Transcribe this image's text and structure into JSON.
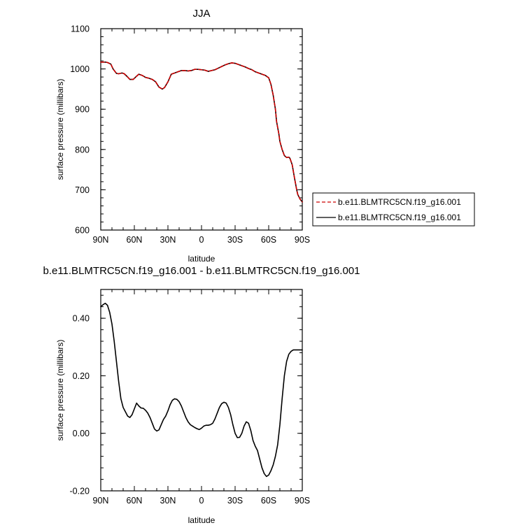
{
  "chart_data": [
    {
      "type": "line",
      "title": "JJA",
      "xlabel": "latitude",
      "ylabel": "surface pressure (millibars)",
      "xlim": [
        90,
        -90
      ],
      "ylim": [
        600,
        1100
      ],
      "x_ticks": [
        90,
        60,
        30,
        0,
        -30,
        -60,
        -90
      ],
      "x_tick_labels": [
        "90N",
        "60N",
        "30N",
        "0",
        "30S",
        "60S",
        "90S"
      ],
      "y_ticks": [
        600,
        700,
        800,
        900,
        1000,
        1100
      ],
      "y_tick_labels": [
        "600",
        "700",
        "800",
        "900",
        "1000",
        "1100"
      ],
      "legend_position": "right",
      "series": [
        {
          "name": "b.e11.BLMTRC5CN.f19_g16.001",
          "color": "#cc0000",
          "dash": "dashed",
          "x": [
            90,
            86,
            84,
            81,
            79,
            76,
            74,
            71,
            69,
            66,
            64,
            61,
            58,
            56,
            53,
            50,
            47,
            44,
            41,
            38,
            35,
            33,
            30,
            27,
            24,
            21,
            18,
            15,
            12,
            9,
            6,
            3,
            0,
            -3,
            -6,
            -9,
            -12,
            -15,
            -18,
            -21,
            -24,
            -27,
            -30,
            -33,
            -36,
            -39,
            -42,
            -45,
            -48,
            -51,
            -54,
            -57,
            -60,
            -62,
            -64,
            -66,
            -67,
            -69,
            -70,
            -72,
            -74,
            -76,
            -78,
            -79,
            -81,
            -83,
            -85,
            -86,
            -88,
            -89,
            -90
          ],
          "values": [
            1017,
            1017,
            1016,
            1012,
            1000,
            989,
            988,
            990,
            988,
            980,
            974,
            974,
            982,
            987,
            984,
            979,
            977,
            974,
            968,
            955,
            950,
            954,
            968,
            987,
            990,
            993,
            996,
            996,
            995,
            996,
            999,
            999,
            998,
            997,
            994,
            996,
            998,
            1002,
            1006,
            1010,
            1013,
            1015,
            1014,
            1011,
            1008,
            1005,
            1001,
            998,
            993,
            990,
            987,
            984,
            978,
            962,
            935,
            900,
            870,
            840,
            820,
            800,
            785,
            780,
            781,
            778,
            762,
            730,
            700,
            688,
            677,
            673,
            670
          ]
        },
        {
          "name": "b.e11.BLMTRC5CN.f19_g16.001",
          "color": "#000000",
          "dash": "solid",
          "x": [
            90,
            86,
            84,
            81,
            79,
            76,
            74,
            71,
            69,
            66,
            64,
            61,
            58,
            56,
            53,
            50,
            47,
            44,
            41,
            38,
            35,
            33,
            30,
            27,
            24,
            21,
            18,
            15,
            12,
            9,
            6,
            3,
            0,
            -3,
            -6,
            -9,
            -12,
            -15,
            -18,
            -21,
            -24,
            -27,
            -30,
            -33,
            -36,
            -39,
            -42,
            -45,
            -48,
            -51,
            -54,
            -57,
            -60,
            -62,
            -64,
            -66,
            -67,
            -69,
            -70,
            -72,
            -74,
            -76,
            -78,
            -79,
            -81,
            -83,
            -85,
            -86,
            -88,
            -89,
            -90
          ],
          "values": [
            1017,
            1017,
            1016,
            1012,
            1000,
            989,
            988,
            990,
            988,
            980,
            974,
            974,
            982,
            987,
            984,
            979,
            977,
            974,
            968,
            955,
            950,
            954,
            968,
            987,
            990,
            993,
            996,
            996,
            995,
            996,
            999,
            999,
            998,
            997,
            994,
            996,
            998,
            1002,
            1006,
            1010,
            1013,
            1015,
            1014,
            1011,
            1008,
            1005,
            1001,
            998,
            993,
            990,
            987,
            984,
            978,
            962,
            935,
            900,
            870,
            840,
            820,
            800,
            785,
            780,
            781,
            778,
            762,
            730,
            700,
            688,
            677,
            673,
            670
          ]
        }
      ]
    },
    {
      "type": "line",
      "title": "b.e11.BLMTRC5CN.f19_g16.001 - b.e11.BLMTRC5CN.f19_g16.001",
      "xlabel": "latitude",
      "ylabel": "surface pressure (millibars)",
      "xlim": [
        90,
        -90
      ],
      "ylim": [
        -0.2,
        0.5
      ],
      "x_ticks": [
        90,
        60,
        30,
        0,
        -30,
        -60,
        -90
      ],
      "x_tick_labels": [
        "90N",
        "60N",
        "30N",
        "0",
        "30S",
        "60S",
        "90S"
      ],
      "y_ticks": [
        -0.2,
        0,
        0.2,
        0.4
      ],
      "y_tick_labels": [
        "-0.20",
        "0.00",
        "0.20",
        "0.40"
      ],
      "series": [
        {
          "color": "#000000",
          "dash": "solid",
          "x": [
            90,
            88,
            86,
            84,
            82,
            80,
            78,
            76,
            74,
            72,
            70,
            68,
            66,
            64,
            62,
            60,
            58,
            56,
            54,
            52,
            50,
            48,
            46,
            44,
            42,
            40,
            38,
            36,
            34,
            32,
            30,
            28,
            26,
            24,
            22,
            20,
            18,
            16,
            14,
            12,
            10,
            8,
            6,
            4,
            2,
            0,
            -2,
            -4,
            -6,
            -8,
            -10,
            -12,
            -14,
            -16,
            -18,
            -20,
            -22,
            -24,
            -26,
            -28,
            -30,
            -32,
            -34,
            -36,
            -38,
            -40,
            -42,
            -44,
            -46,
            -48,
            -50,
            -52,
            -54,
            -56,
            -58,
            -60,
            -62,
            -64,
            -66,
            -68,
            -70,
            -72,
            -74,
            -76,
            -78,
            -80,
            -82,
            -84,
            -86,
            -88,
            -90
          ],
          "values": [
            0.44,
            0.447,
            0.452,
            0.445,
            0.42,
            0.38,
            0.32,
            0.25,
            0.18,
            0.12,
            0.09,
            0.075,
            0.06,
            0.055,
            0.065,
            0.085,
            0.105,
            0.095,
            0.088,
            0.087,
            0.08,
            0.07,
            0.055,
            0.035,
            0.015,
            0.008,
            0.012,
            0.03,
            0.048,
            0.06,
            0.078,
            0.1,
            0.115,
            0.12,
            0.118,
            0.11,
            0.095,
            0.075,
            0.055,
            0.04,
            0.03,
            0.025,
            0.02,
            0.016,
            0.013,
            0.018,
            0.025,
            0.028,
            0.028,
            0.03,
            0.035,
            0.05,
            0.07,
            0.09,
            0.103,
            0.108,
            0.105,
            0.09,
            0.065,
            0.03,
            0.0,
            -0.015,
            -0.014,
            0.0,
            0.025,
            0.04,
            0.035,
            0.01,
            -0.025,
            -0.045,
            -0.06,
            -0.09,
            -0.12,
            -0.14,
            -0.15,
            -0.145,
            -0.13,
            -0.11,
            -0.08,
            -0.04,
            0.03,
            0.12,
            0.2,
            0.25,
            0.275,
            0.285,
            0.29,
            0.29,
            0.29,
            0.29,
            0.29
          ]
        }
      ]
    }
  ]
}
